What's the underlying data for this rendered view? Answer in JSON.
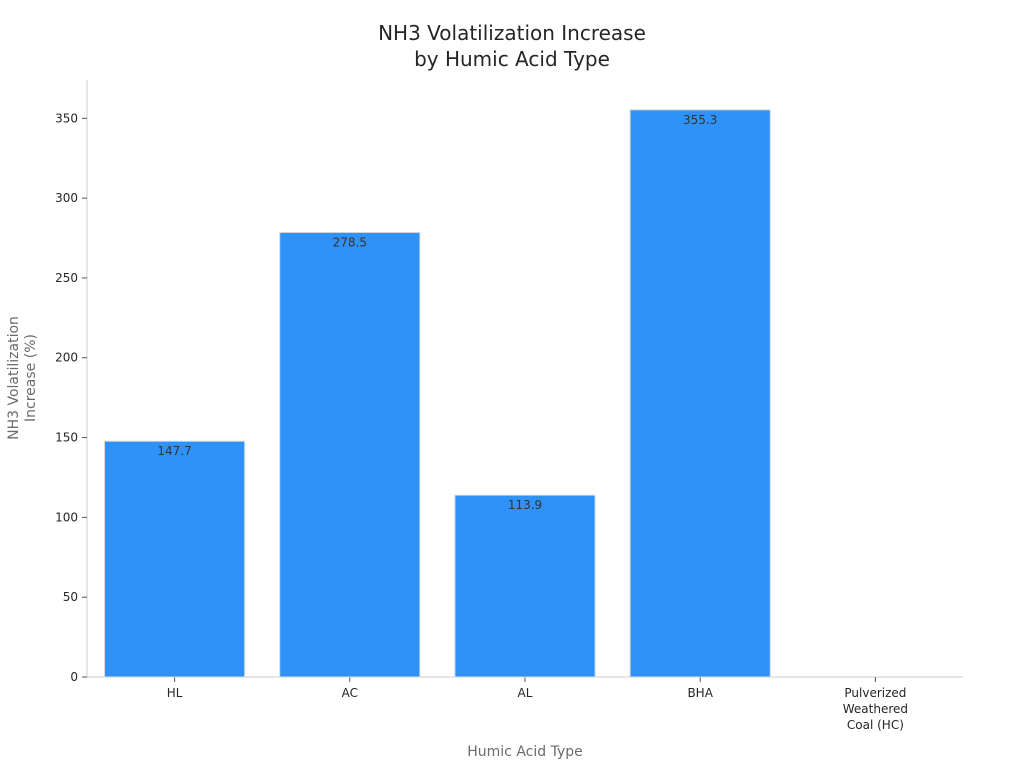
{
  "chart_data": {
    "type": "bar",
    "title_lines": [
      "NH3 Volatilization Increase",
      "by Humic Acid Type"
    ],
    "xlabel": "Humic Acid Type",
    "ylabel_lines": [
      "NH3 Volatilization",
      "Increase (%)"
    ],
    "categories": [
      [
        "HL"
      ],
      [
        "AC"
      ],
      [
        "AL"
      ],
      [
        "BHA"
      ],
      [
        "Pulverized",
        "Weathered",
        "Coal (HC)"
      ]
    ],
    "values": [
      147.7,
      278.5,
      113.9,
      355.3,
      null
    ],
    "value_labels": [
      "147.7",
      "278.5",
      "113.9",
      "355.3",
      ""
    ],
    "ylim": [
      0,
      374
    ],
    "yticks": [
      0,
      50,
      100,
      150,
      200,
      250,
      300,
      350
    ],
    "grid": false,
    "colors": {
      "bar": "#2e92f8",
      "bar_edge": "#d9d9d9",
      "axis": "#cccccc",
      "tick": "#555555"
    }
  }
}
